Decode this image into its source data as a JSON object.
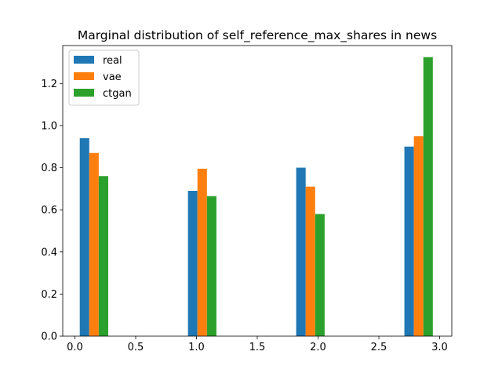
{
  "chart_data": {
    "type": "bar",
    "title": "Marginal distribution of self_reference_max_shares in news",
    "xlabel": "",
    "ylabel": "",
    "xlim": [
      -0.1,
      3.1
    ],
    "ylim": [
      0,
      1.38
    ],
    "x_ticks": [
      "0.0",
      "0.5",
      "1.0",
      "1.5",
      "2.0",
      "2.5",
      "3.0"
    ],
    "y_ticks": [
      "0.0",
      "0.2",
      "0.4",
      "0.6",
      "0.8",
      "1.0",
      "1.2"
    ],
    "bin_width": 0.078,
    "series": [
      {
        "name": "real",
        "color": "#1f77b4",
        "x": [
          0.04,
          0.93,
          1.82,
          2.71
        ],
        "values": [
          0.94,
          0.69,
          0.8,
          0.9
        ]
      },
      {
        "name": "vae",
        "color": "#ff7f0e",
        "x": [
          0.118,
          1.008,
          1.898,
          2.788
        ],
        "values": [
          0.87,
          0.795,
          0.71,
          0.95
        ]
      },
      {
        "name": "ctgan",
        "color": "#2ca02c",
        "x": [
          0.196,
          1.086,
          1.976,
          2.866
        ],
        "values": [
          0.76,
          0.665,
          0.58,
          1.325
        ]
      }
    ],
    "legend_position": "top-left",
    "grid": false
  }
}
